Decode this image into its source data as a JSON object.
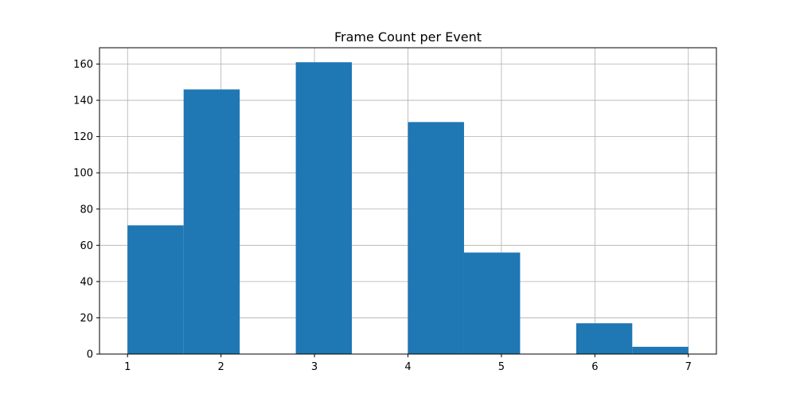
{
  "chart_data": {
    "type": "bar",
    "title": "Frame Count per Event",
    "xlabel": "",
    "ylabel": "",
    "xlim": [
      0.7,
      7.3
    ],
    "ylim": [
      0,
      169
    ],
    "x_ticks": [
      1,
      2,
      3,
      4,
      5,
      6,
      7
    ],
    "y_ticks": [
      0,
      20,
      40,
      60,
      80,
      100,
      120,
      140,
      160
    ],
    "bin_edges": [
      1.0,
      1.6,
      2.2,
      2.8,
      3.4,
      4.0,
      4.6,
      5.2,
      5.8,
      6.4,
      7.0
    ],
    "values": [
      71,
      146,
      0,
      161,
      0,
      128,
      56,
      0,
      17,
      4
    ],
    "grid": true,
    "colors": {
      "bar": "#1f77b4",
      "grid": "#b0b0b0",
      "axis": "#000000"
    }
  }
}
